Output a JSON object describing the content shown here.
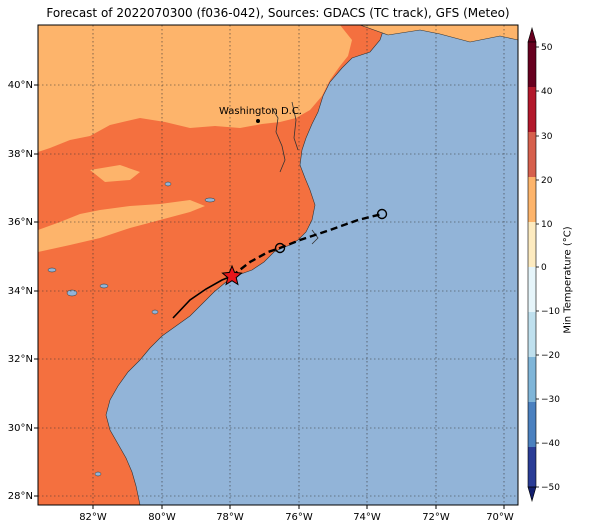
{
  "title": "Forecast of 2022070300 (f036-042), Sources: GDACS (TC track), GFS (Meteo)",
  "map": {
    "lon_range": [
      -83.5,
      -69.5
    ],
    "lat_range": [
      27.8,
      41.8
    ],
    "x_ticks": [
      "82°W",
      "80°W",
      "78°W",
      "76°W",
      "74°W",
      "72°W",
      "70°W"
    ],
    "y_ticks": [
      "28°N",
      "30°N",
      "32°N",
      "34°N",
      "36°N",
      "38°N",
      "40°N"
    ],
    "gridlines": true,
    "ocean_color": "#92b4d8",
    "city": {
      "name": "Washington D.C."
    },
    "storm_marker": "red star",
    "track_colors": {
      "past": "solid black",
      "forecast": "dashed black"
    }
  },
  "colorbar": {
    "label": "Min Temperature (°C)",
    "ticks": [
      "50",
      "40",
      "30",
      "20",
      "10",
      "0",
      "−10",
      "−20",
      "−30",
      "−40",
      "−50"
    ],
    "colors": [
      "#67001f",
      "#b2182b",
      "#d6604d",
      "#f4a582",
      "#fddbc7",
      "#f7f7f7",
      "#d1e5f0",
      "#92c5de",
      "#4393c3",
      "#2166ac",
      "#053061"
    ],
    "land_colors": {
      "20to30": "#f4703f",
      "10to20": "#fdb46b"
    }
  }
}
